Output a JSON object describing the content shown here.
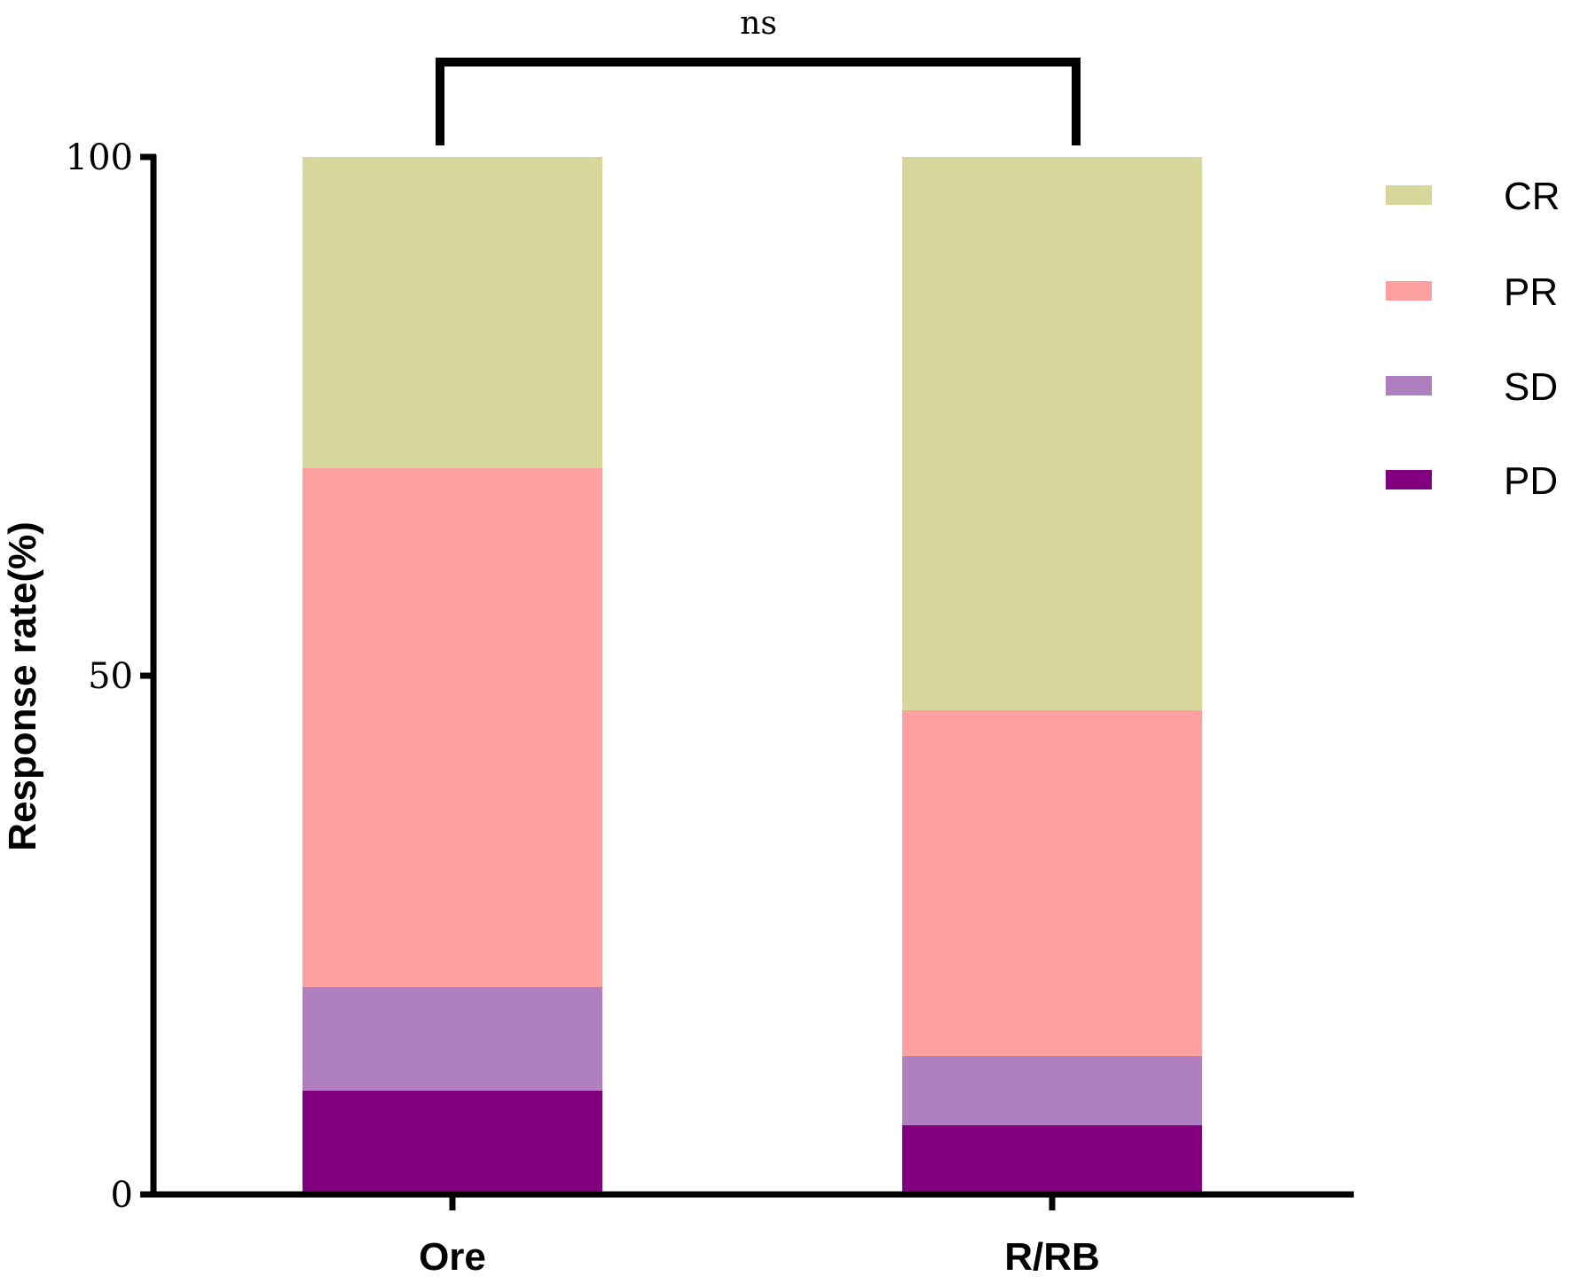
{
  "chart_data": {
    "type": "bar",
    "stacked": true,
    "categories": [
      "Ore",
      "R/RB"
    ],
    "series": [
      {
        "name": "PD",
        "color": "#82007d",
        "values": [
          10,
          6.67
        ]
      },
      {
        "name": "SD",
        "color": "#b07fbf",
        "values": [
          10,
          6.67
        ]
      },
      {
        "name": "PR",
        "color": "#fda0a0",
        "values": [
          50,
          33.33
        ]
      },
      {
        "name": "CR",
        "color": "#d7d69b",
        "values": [
          30,
          53.33
        ]
      }
    ],
    "legend_order": [
      "CR",
      "PR",
      "SD",
      "PD"
    ],
    "ylabel": "Response rate(%)",
    "xlabel": "",
    "ylim": [
      0,
      100
    ],
    "yticks": [
      "0",
      "50",
      "100"
    ],
    "grid": false,
    "legend_position": "right",
    "annotation": {
      "text": "ns",
      "between": [
        "Ore",
        "R/RB"
      ]
    }
  }
}
